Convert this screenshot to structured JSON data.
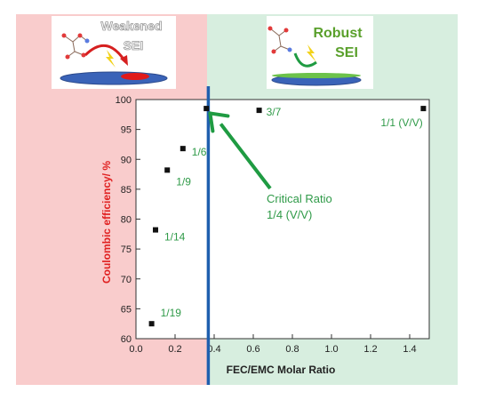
{
  "colors": {
    "left_region": "#f9cccc",
    "right_region": "#d7eedf",
    "critical_line": "#1f5fae",
    "arrow": "#1f9b42",
    "point_label": "#2f9a48",
    "ylabel": "#e02020",
    "point": "#111111",
    "sei_green": "#5aa02c"
  },
  "panels": {
    "weakened": {
      "line1": "Weakened",
      "line2": "SEI",
      "icon": "molecule-attack-icon"
    },
    "robust": {
      "line1": "Robust",
      "line2": "SEI",
      "icon": "molecule-protect-icon"
    }
  },
  "chart_data": {
    "type": "scatter",
    "xlabel": "FEC/EMC Molar Ratio",
    "ylabel": "Coulombic efficiency/ %",
    "xlim": [
      0,
      1.5
    ],
    "ylim": [
      60,
      100
    ],
    "xticks": [
      0.0,
      0.2,
      0.4,
      0.6,
      0.8,
      1.0,
      1.2,
      1.4
    ],
    "xtick_labels": [
      "0.0",
      "0.2",
      "0.4",
      "0.6",
      "0.8",
      "1.0",
      "1.2",
      "1.4"
    ],
    "yticks": [
      60,
      65,
      70,
      75,
      80,
      85,
      90,
      95,
      100
    ],
    "ytick_labels": [
      "60",
      "65",
      "70",
      "75",
      "80",
      "85",
      "90",
      "95",
      "100"
    ],
    "points": [
      {
        "x": 0.08,
        "y": 62.5,
        "label": "1/19"
      },
      {
        "x": 0.1,
        "y": 78.2,
        "label": "1/14"
      },
      {
        "x": 0.16,
        "y": 88.2,
        "label": "1/9"
      },
      {
        "x": 0.24,
        "y": 91.8,
        "label": "1/6"
      },
      {
        "x": 0.36,
        "y": 98.5,
        "label": ""
      },
      {
        "x": 0.63,
        "y": 98.2,
        "label": "3/7"
      },
      {
        "x": 1.47,
        "y": 98.5,
        "label": "1/1 (V/V)"
      }
    ],
    "critical_x": 0.37,
    "annotation": {
      "line1": "Critical Ratio",
      "line2": "1/4 (V/V)"
    },
    "grid": false
  }
}
